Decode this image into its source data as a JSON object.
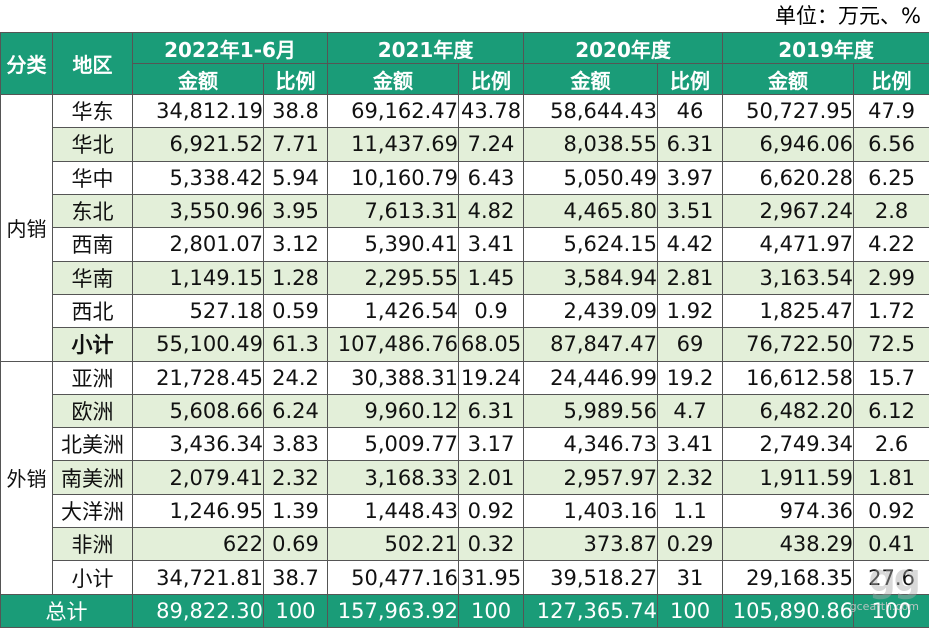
{
  "unit_label": "单位：万元、%",
  "header": {
    "category": "分类",
    "region": "地区",
    "periods": [
      "2022年1-6月",
      "2021年度",
      "2020年度",
      "2019年度"
    ],
    "amount": "金额",
    "ratio": "比例"
  },
  "groups": [
    {
      "name": "内销",
      "rows": [
        {
          "region": "华东",
          "values": [
            "34,812.19",
            "38.8",
            "69,162.47",
            "43.78",
            "58,644.43",
            "46",
            "50,727.95",
            "47.9"
          ]
        },
        {
          "region": "华北",
          "values": [
            "6,921.52",
            "7.71",
            "11,437.69",
            "7.24",
            "8,038.55",
            "6.31",
            "6,946.06",
            "6.56"
          ]
        },
        {
          "region": "华中",
          "values": [
            "5,338.42",
            "5.94",
            "10,160.79",
            "6.43",
            "5,050.49",
            "3.97",
            "6,620.28",
            "6.25"
          ]
        },
        {
          "region": "东北",
          "values": [
            "3,550.96",
            "3.95",
            "7,613.31",
            "4.82",
            "4,465.80",
            "3.51",
            "2,967.24",
            "2.8"
          ]
        },
        {
          "region": "西南",
          "values": [
            "2,801.07",
            "3.12",
            "5,390.41",
            "3.41",
            "5,624.15",
            "4.42",
            "4,471.97",
            "4.22"
          ]
        },
        {
          "region": "华南",
          "values": [
            "1,149.15",
            "1.28",
            "2,295.55",
            "1.45",
            "3,584.94",
            "2.81",
            "3,163.54",
            "2.99"
          ]
        },
        {
          "region": "西北",
          "values": [
            "527.18",
            "0.59",
            "1,426.54",
            "0.9",
            "2,439.09",
            "1.92",
            "1,825.47",
            "1.72"
          ]
        },
        {
          "region": "小计",
          "values": [
            "55,100.49",
            "61.3",
            "107,486.76",
            "68.05",
            "87,847.47",
            "69",
            "76,722.50",
            "72.5"
          ]
        }
      ]
    },
    {
      "name": "外销",
      "rows": [
        {
          "region": "亚洲",
          "values": [
            "21,728.45",
            "24.2",
            "30,388.31",
            "19.24",
            "24,446.99",
            "19.2",
            "16,612.58",
            "15.7"
          ]
        },
        {
          "region": "欧洲",
          "values": [
            "5,608.66",
            "6.24",
            "9,960.12",
            "6.31",
            "5,989.56",
            "4.7",
            "6,482.20",
            "6.12"
          ]
        },
        {
          "region": "北美洲",
          "values": [
            "3,436.34",
            "3.83",
            "5,009.77",
            "3.17",
            "4,346.73",
            "3.41",
            "2,749.34",
            "2.6"
          ]
        },
        {
          "region": "南美洲",
          "values": [
            "2,079.41",
            "2.32",
            "3,168.33",
            "2.01",
            "2,957.97",
            "2.32",
            "1,911.59",
            "1.81"
          ]
        },
        {
          "region": "大洋洲",
          "values": [
            "1,246.95",
            "1.39",
            "1,448.43",
            "0.92",
            "1,403.16",
            "1.1",
            "974.36",
            "0.92"
          ]
        },
        {
          "region": "非洲",
          "values": [
            "622",
            "0.69",
            "502.21",
            "0.32",
            "373.87",
            "0.29",
            "438.29",
            "0.41"
          ]
        },
        {
          "region": "小计",
          "values": [
            "34,721.81",
            "38.7",
            "50,477.16",
            "31.95",
            "39,518.27",
            "31",
            "29,168.35",
            "27.6"
          ]
        }
      ]
    }
  ],
  "total": {
    "label": "总计",
    "values": [
      "89,822.30",
      "100",
      "157,963.92",
      "100",
      "127,365.74",
      "100",
      "105,890.86",
      "100"
    ]
  },
  "watermark": {
    "big": "gg",
    "small": "gcearth.com"
  },
  "colors": {
    "header_bg": "#1a9c78",
    "stripe_bg": "#e3efd9"
  }
}
